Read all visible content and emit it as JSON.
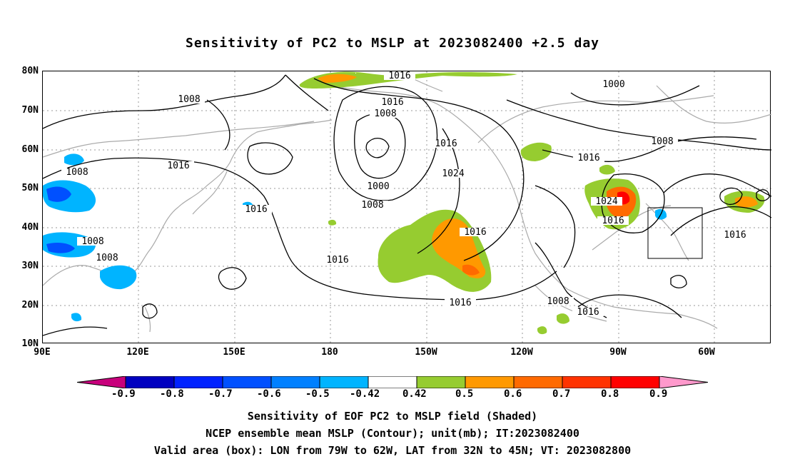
{
  "title": "Sensitivity of PC2 to MSLP at 2023082400 +2.5 day",
  "lat_labels": [
    "80N",
    "70N",
    "60N",
    "50N",
    "40N",
    "30N",
    "20N",
    "10N"
  ],
  "lon_labels": [
    "90E",
    "120E",
    "150E",
    "180",
    "150W",
    "120W",
    "90W",
    "60W"
  ],
  "contour_labels": [
    "1016",
    "1008",
    "1016",
    "1008",
    "1016",
    "1000",
    "1008",
    "1016",
    "1016",
    "1008",
    "1000",
    "1008",
    "1016",
    "1008",
    "1008",
    "1024",
    "1016",
    "1016",
    "1016",
    "1008",
    "1016",
    "1024",
    "1016",
    "1016",
    "1016"
  ],
  "colorbar": {
    "labels": [
      "-0.9",
      "-0.8",
      "-0.7",
      "-0.6",
      "-0.5",
      "-0.42",
      "0.42",
      "0.5",
      "0.6",
      "0.7",
      "0.8",
      "0.9"
    ],
    "colors": [
      "#c8007c",
      "#0000c0",
      "#0022ff",
      "#0050ff",
      "#0080ff",
      "#00b4ff",
      "#ffffff",
      "#96cc30",
      "#ff9900",
      "#ff6a00",
      "#ff3300",
      "#ff0000",
      "#ff99cc"
    ]
  },
  "captions": {
    "line1": "Sensitivity of EOF PC2 to MSLP field (Shaded)",
    "line2": "NCEP ensemble mean MSLP (Contour); unit(mb); IT:2023082400",
    "line3": "Valid area (box): LON from 79W to 62W, LAT from 32N to 45N; VT: 2023082800"
  }
}
